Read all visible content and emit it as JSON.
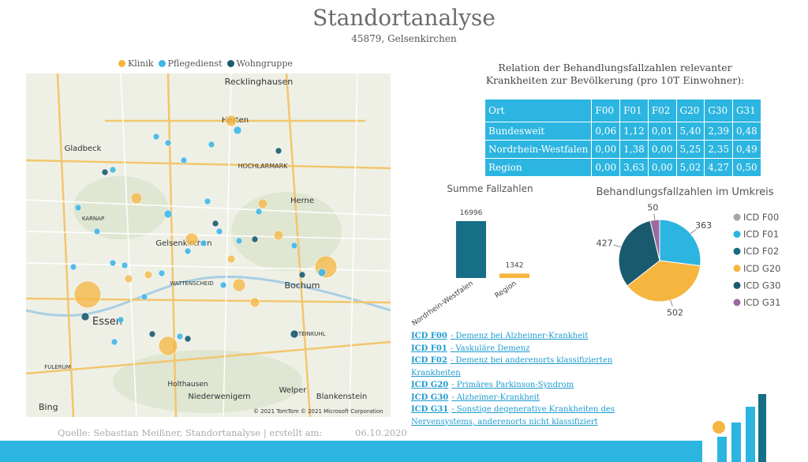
{
  "header": {
    "title": "Standortanalyse",
    "subtitle": "45879, Gelsenkirchen"
  },
  "map": {
    "legend": [
      {
        "name": "Klinik",
        "color": "#f5b53f"
      },
      {
        "name": "Pflegedienst",
        "color": "#41b6e6"
      },
      {
        "name": "Wohngruppe",
        "color": "#1a5a6e"
      }
    ],
    "labels": [
      "Recklinghausen",
      "Herten",
      "Gladbeck",
      "HOCHLARMARK",
      "Gelsenkirchen",
      "Herne",
      "Essen",
      "Bochum",
      "Holthausen",
      "Niederwenigern",
      "Welper",
      "Blankenstein",
      "KARNAP",
      "WATTENSCHEID",
      "STEINKUHL",
      "FULERUM"
    ],
    "brand": "Bing",
    "attribution": "© 2021 TomTom © 2021 Microsoft Corporation"
  },
  "table": {
    "title": "Relation der Behandlungsfallzahlen relevanter Krankheiten zur Bevölkerung (pro 10T Einwohner):",
    "columns": [
      "Ort",
      "F00",
      "F01",
      "F02",
      "G20",
      "G30",
      "G31"
    ],
    "rows": [
      [
        "Bundesweit",
        "0,06",
        "1,12",
        "0,01",
        "5,40",
        "2,39",
        "0,48"
      ],
      [
        "Nordrhein-Westfalen",
        "0,00",
        "1,38",
        "0,00",
        "5,25",
        "2,35",
        "0,49"
      ],
      [
        "Region",
        "0,00",
        "3,63",
        "0,00",
        "5,02",
        "4,27",
        "0,50"
      ]
    ]
  },
  "chart_data": [
    {
      "type": "bar",
      "title": "Summe Fallzahlen",
      "categories": [
        "Nordrhein-Westfalen",
        "Region"
      ],
      "values": [
        16996,
        1342
      ],
      "colors": [
        "#176e87",
        "#f5b53f"
      ]
    },
    {
      "type": "pie",
      "title": "Behandlungsfallzahlen im Umkreis",
      "categories": [
        "ICD F00",
        "ICD F01",
        "ICD F02",
        "ICD G20",
        "ICD G30",
        "ICD G31"
      ],
      "values": [
        0,
        363,
        0,
        502,
        427,
        50
      ],
      "colors": [
        "#a6a6a6",
        "#2bb5e0",
        "#156b80",
        "#f5b53f",
        "#1a5a6e",
        "#9b6b9e"
      ]
    }
  ],
  "links": [
    {
      "code": "ICD F00",
      "text": "- Demenz bei Alzheimer-Krankheit"
    },
    {
      "code": "ICD F01",
      "text": "- Vaskuläre Demenz"
    },
    {
      "code": "ICD F02",
      "text": "- Demenz bei anderenorts klassifizierten Krankheiten"
    },
    {
      "code": "ICD G20",
      "text": "- Primäres Parkinson-Syndrom"
    },
    {
      "code": "ICD G30",
      "text": "- Alzheimer-Krankheit"
    },
    {
      "code": "ICD G31",
      "text": "- Sonstige degenerative Krankheiten des Nervensystems, anderenorts nicht klassifiziert"
    }
  ],
  "footer": {
    "source": "Quelle: Sebastian Meißner, Standortanalyse | erstellt am:",
    "date": "06.10.2020"
  }
}
